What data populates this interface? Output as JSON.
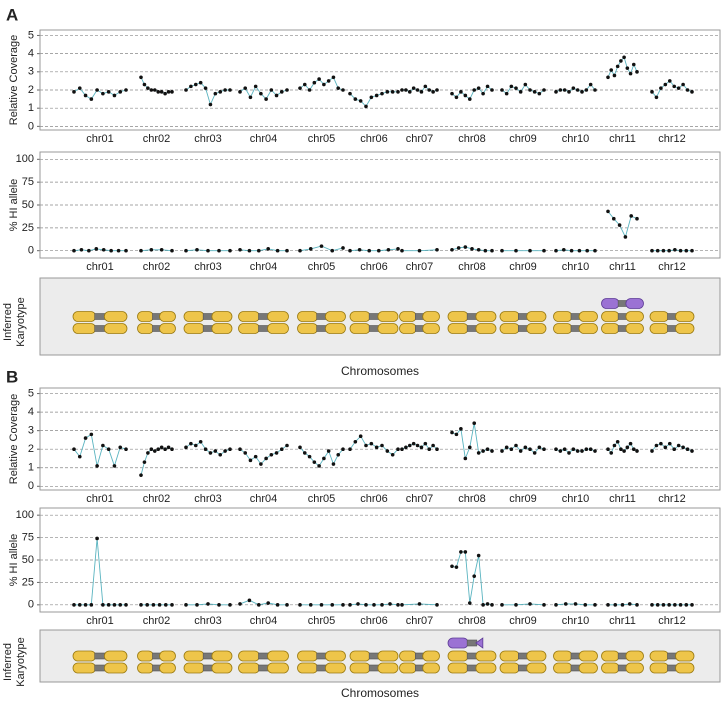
{
  "panel_labels": [
    "A",
    "B"
  ],
  "karyotype": {
    "label": "Inferred Karyotype",
    "xlabel": "Chromosomes"
  },
  "chart_data": [
    {
      "type": "line",
      "ylabel": "Relative Coverage",
      "categories": [
        "chr01",
        "chr02",
        "chr03",
        "chr04",
        "chr05",
        "chr06",
        "chr07",
        "chr08",
        "chr09",
        "chr10",
        "chr11",
        "chr12"
      ],
      "values": [
        [
          1.9,
          2.1,
          1.7,
          1.5,
          2.0,
          1.8,
          1.9,
          1.7,
          1.9,
          2.0
        ],
        [
          2.7,
          2.3,
          2.1,
          2.0,
          2.0,
          1.9,
          1.9,
          1.8,
          1.9,
          1.9
        ],
        [
          2.0,
          2.2,
          2.3,
          2.4,
          2.1,
          1.2,
          1.8,
          1.9,
          2.0,
          2.0
        ],
        [
          1.9,
          2.1,
          1.6,
          2.2,
          1.8,
          1.5,
          2.0,
          1.7,
          1.9,
          2.0
        ],
        [
          2.1,
          2.3,
          2.0,
          2.4,
          2.6,
          2.3,
          2.5,
          2.7,
          2.1,
          2.0
        ],
        [
          1.8,
          1.5,
          1.4,
          1.1,
          1.6,
          1.7,
          1.8,
          1.9,
          1.9,
          1.9
        ],
        [
          2.0,
          2.0,
          1.9,
          2.1,
          2.0,
          1.9,
          2.2,
          2.0,
          1.9,
          2.0
        ],
        [
          1.8,
          1.6,
          1.9,
          1.7,
          1.5,
          2.0,
          2.1,
          1.8,
          2.2,
          2.0
        ],
        [
          2.0,
          1.8,
          2.2,
          2.1,
          1.9,
          2.3,
          2.0,
          1.9,
          1.8,
          2.0
        ],
        [
          1.9,
          2.0,
          2.0,
          1.9,
          2.1,
          2.0,
          1.9,
          2.0,
          2.3,
          2.0
        ],
        [
          2.7,
          3.1,
          2.8,
          3.3,
          3.6,
          3.8,
          3.2,
          2.9,
          3.4,
          3.0
        ],
        [
          1.9,
          1.6,
          2.1,
          2.3,
          2.5,
          2.2,
          2.1,
          2.3,
          2.0,
          1.9
        ]
      ],
      "color": "#111111",
      "line_color": "#5ab4c0",
      "ylim": [
        -0.2,
        5.3
      ],
      "yticks": [
        0,
        1,
        2,
        3,
        4,
        5
      ],
      "grid": true
    },
    {
      "type": "line",
      "ylabel": "% HI allele",
      "categories": [
        "chr01",
        "chr02",
        "chr03",
        "chr04",
        "chr05",
        "chr06",
        "chr07",
        "chr08",
        "chr09",
        "chr10",
        "chr11",
        "chr12"
      ],
      "values": [
        [
          0,
          1,
          0,
          2,
          1,
          0,
          0,
          0
        ],
        [
          0,
          1,
          1,
          0
        ],
        [
          0,
          1,
          0,
          0,
          0
        ],
        [
          1,
          0,
          0,
          2,
          0,
          0
        ],
        [
          0,
          2,
          5,
          0,
          3
        ],
        [
          0,
          1,
          0,
          0,
          1,
          2
        ],
        [
          0,
          0,
          1
        ],
        [
          1,
          3,
          4,
          2,
          1,
          0,
          0
        ],
        [
          0,
          0,
          0,
          0
        ],
        [
          0,
          1,
          0,
          0,
          0,
          0
        ],
        [
          43,
          35,
          28,
          15,
          38,
          35
        ],
        [
          0,
          0,
          0,
          0,
          1,
          0,
          0,
          0
        ]
      ],
      "color": "#111111",
      "line_color": "#5ab4c0",
      "ylim": [
        -8,
        108
      ],
      "yticks": [
        0,
        25,
        50,
        75,
        100
      ],
      "grid": true
    },
    {
      "type": "line",
      "ylabel": "Relative Coverage",
      "categories": [
        "chr01",
        "chr02",
        "chr03",
        "chr04",
        "chr05",
        "chr06",
        "chr07",
        "chr08",
        "chr09",
        "chr10",
        "chr11",
        "chr12"
      ],
      "values": [
        [
          2.0,
          1.6,
          2.6,
          2.8,
          1.1,
          2.2,
          2.0,
          1.1,
          2.1,
          2.0
        ],
        [
          0.6,
          1.3,
          1.8,
          2.0,
          1.9,
          2.0,
          2.1,
          2.0,
          2.1,
          2.0
        ],
        [
          2.1,
          2.3,
          2.2,
          2.4,
          2.0,
          1.8,
          1.9,
          1.7,
          1.9,
          2.0
        ],
        [
          2.0,
          1.8,
          1.4,
          1.6,
          1.2,
          1.5,
          1.7,
          1.8,
          2.0,
          2.2
        ],
        [
          2.1,
          1.8,
          1.6,
          1.3,
          1.1,
          1.5,
          1.9,
          1.2,
          1.7,
          2.0
        ],
        [
          2.0,
          2.4,
          2.7,
          2.2,
          2.3,
          2.1,
          2.2,
          1.9,
          1.7,
          2.0
        ],
        [
          2.0,
          2.1,
          2.2,
          2.3,
          2.2,
          2.1,
          2.3,
          2.0,
          2.2,
          2.0
        ],
        [
          2.9,
          2.8,
          3.1,
          1.5,
          2.1,
          3.4,
          1.8,
          1.9,
          2.0,
          1.9
        ],
        [
          1.9,
          2.1,
          2.0,
          2.2,
          1.9,
          2.1,
          2.0,
          1.8,
          2.1,
          2.0
        ],
        [
          2.0,
          1.9,
          2.0,
          1.8,
          2.0,
          1.9,
          1.9,
          2.0,
          2.0,
          1.9
        ],
        [
          2.0,
          1.8,
          2.2,
          2.4,
          2.0,
          1.9,
          2.1,
          2.3,
          2.0,
          1.9
        ],
        [
          1.9,
          2.2,
          2.3,
          2.1,
          2.3,
          2.0,
          2.2,
          2.1,
          2.0,
          1.9
        ]
      ],
      "color": "#111111",
      "line_color": "#5ab4c0",
      "ylim": [
        -0.2,
        5.3
      ],
      "yticks": [
        0,
        1,
        2,
        3,
        4,
        5
      ],
      "grid": true
    },
    {
      "type": "line",
      "ylabel": "% HI allele",
      "categories": [
        "chr01",
        "chr02",
        "chr03",
        "chr04",
        "chr05",
        "chr06",
        "chr07",
        "chr08",
        "chr09",
        "chr10",
        "chr11",
        "chr12"
      ],
      "values": [
        [
          0,
          0,
          0,
          0,
          74,
          0,
          0,
          0,
          0,
          0
        ],
        [
          0,
          0,
          0,
          0,
          0,
          0
        ],
        [
          0,
          0,
          1,
          0,
          0
        ],
        [
          1,
          5,
          0,
          2,
          0,
          0
        ],
        [
          0,
          0,
          0,
          0,
          0
        ],
        [
          0,
          1,
          0,
          0,
          0,
          1,
          0
        ],
        [
          0,
          1,
          0
        ],
        [
          43,
          42,
          59,
          59,
          2,
          32,
          55,
          0,
          1,
          0
        ],
        [
          0,
          0,
          1,
          0
        ],
        [
          0,
          1,
          1,
          0,
          0
        ],
        [
          0,
          0,
          0,
          1,
          0
        ],
        [
          0,
          0,
          0,
          0,
          0,
          0,
          0,
          0
        ]
      ],
      "color": "#111111",
      "line_color": "#5ab4c0",
      "ylim": [
        -8,
        108
      ],
      "yticks": [
        0,
        25,
        50,
        75,
        100
      ],
      "grid": true
    }
  ]
}
